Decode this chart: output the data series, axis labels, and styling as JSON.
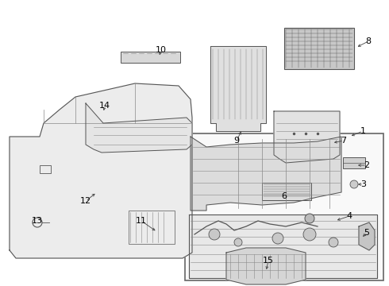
{
  "bg_color": "#ffffff",
  "line_color": "#555555",
  "label_color": "#000000",
  "label_positions": {
    "1": [
      457,
      165,
      440,
      172
    ],
    "2": [
      462,
      208,
      448,
      208
    ],
    "3": [
      458,
      232,
      448,
      232
    ],
    "4": [
      440,
      272,
      422,
      278
    ],
    "5": [
      462,
      293,
      455,
      300
    ],
    "6": [
      358,
      247,
      358,
      242
    ],
    "7": [
      433,
      177,
      418,
      180
    ],
    "8": [
      464,
      52,
      448,
      60
    ],
    "9": [
      298,
      177,
      305,
      163
    ],
    "10": [
      203,
      63,
      200,
      72
    ],
    "11": [
      178,
      278,
      198,
      292
    ],
    "12": [
      108,
      253,
      122,
      242
    ],
    "13": [
      47,
      278,
      47,
      278
    ],
    "14": [
      132,
      133,
      130,
      142
    ],
    "15": [
      338,
      328,
      335,
      342
    ]
  }
}
